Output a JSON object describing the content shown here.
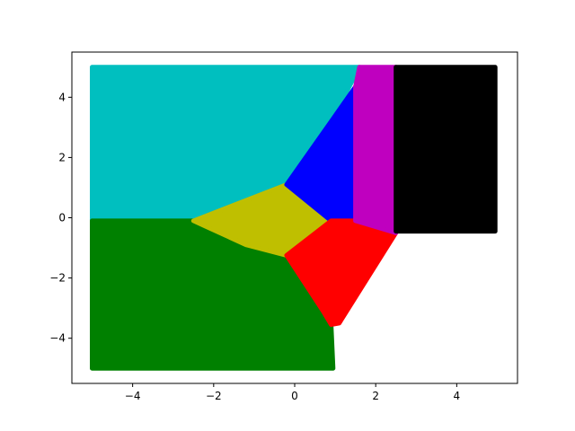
{
  "chart_data": {
    "type": "scatter",
    "title": "",
    "xlabel": "",
    "ylabel": "",
    "xlim": [
      -5.5,
      5.5
    ],
    "ylim": [
      -5.5,
      5.5
    ],
    "grid": false,
    "legend": "none",
    "x_ticks": [
      {
        "value": -4,
        "label": "−4"
      },
      {
        "value": -2,
        "label": "−2"
      },
      {
        "value": 0,
        "label": "0"
      },
      {
        "value": 2,
        "label": "2"
      },
      {
        "value": 4,
        "label": "4"
      }
    ],
    "y_ticks": [
      {
        "value": 4,
        "label": "4"
      },
      {
        "value": 2,
        "label": "2"
      },
      {
        "value": 0,
        "label": "0"
      },
      {
        "value": -2,
        "label": "−2"
      },
      {
        "value": -4,
        "label": "−4"
      }
    ],
    "regions": [
      {
        "color": "#00bfbf",
        "polygon": [
          [
            -5,
            -0.1
          ],
          [
            -5,
            5
          ],
          [
            1.6,
            5
          ],
          [
            0.9,
            3.2
          ],
          [
            -0.2,
            1.1
          ],
          [
            -2.5,
            -0.1
          ]
        ]
      },
      {
        "color": "#008000",
        "polygon": [
          [
            -5,
            -0.1
          ],
          [
            -2.5,
            -0.1
          ],
          [
            -1.2,
            -0.9
          ],
          [
            -0.2,
            -1.25
          ],
          [
            0.7,
            -3.1
          ],
          [
            0.9,
            -3.55
          ],
          [
            0.95,
            -5
          ],
          [
            -5,
            -5
          ]
        ]
      },
      {
        "color": "#bfbf00",
        "polygon": [
          [
            -2.5,
            -0.1
          ],
          [
            -0.2,
            1.1
          ],
          [
            0.9,
            -0.1
          ],
          [
            -0.2,
            -1.25
          ],
          [
            -1.2,
            -0.9
          ]
        ]
      },
      {
        "color": "#0000ff",
        "polygon": [
          [
            -0.2,
            1.1
          ],
          [
            0.9,
            3.2
          ],
          [
            1.5,
            4.35
          ],
          [
            1.5,
            -0.1
          ],
          [
            0.9,
            -0.1
          ]
        ]
      },
      {
        "color": "#ff0000",
        "polygon": [
          [
            -0.2,
            -1.25
          ],
          [
            0.9,
            -0.1
          ],
          [
            1.5,
            -0.1
          ],
          [
            2.5,
            -0.5
          ],
          [
            1.1,
            -3.5
          ],
          [
            0.9,
            -3.55
          ],
          [
            0.7,
            -3.1
          ]
        ]
      },
      {
        "color": "#bf00bf",
        "polygon": [
          [
            1.6,
            5
          ],
          [
            2.5,
            5
          ],
          [
            2.5,
            -0.5
          ],
          [
            1.5,
            -0.1
          ],
          [
            1.5,
            4.35
          ]
        ]
      },
      {
        "color": "#000000",
        "polygon": [
          [
            2.5,
            5
          ],
          [
            4.95,
            5
          ],
          [
            4.95,
            -0.45
          ],
          [
            2.5,
            -0.45
          ]
        ]
      }
    ]
  }
}
